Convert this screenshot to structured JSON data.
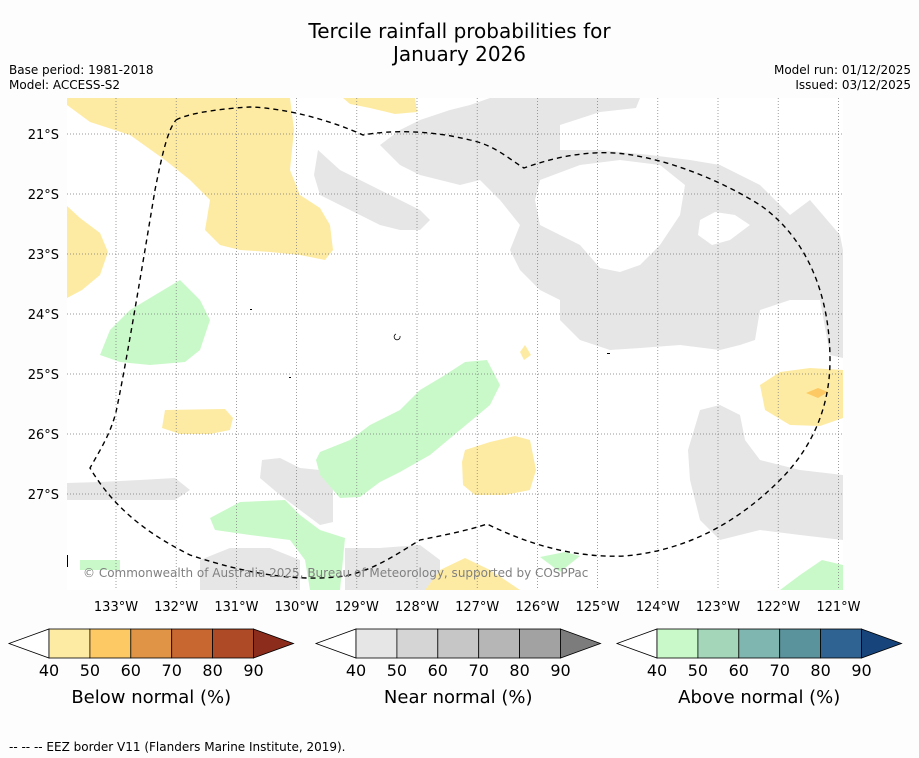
{
  "title_line1": "Tercile rainfall probabilities for",
  "title_line2": "January 2026",
  "base_period": "Base period: 1981-2018",
  "model": "Model: ACCESS-S2",
  "model_run": "Model run: 01/12/2025",
  "issued": "Issued: 03/12/2025",
  "copyright": "© Commonwealth of Australia 2025, Bureau of Meteorology, supported by COSPPac",
  "footer": "--  --  -- EEZ border V11 (Flanders Marine Institute, 2019).",
  "axes": {
    "lat_labels": [
      "21°S",
      "22°S",
      "23°S",
      "24°S",
      "25°S",
      "26°S",
      "27°S"
    ],
    "lon_labels": [
      "133°W",
      "132°W",
      "131°W",
      "130°W",
      "129°W",
      "128°W",
      "127°W",
      "126°W",
      "125°W",
      "124°W",
      "123°W",
      "122°W",
      "121°W"
    ]
  },
  "colorbars": [
    {
      "label": "Below normal (%)",
      "ticks": [
        "40",
        "50",
        "60",
        "70",
        "80",
        "90"
      ],
      "colors": [
        "#feeba3",
        "#fcc964",
        "#e09446",
        "#c96731",
        "#ae4a26",
        "#8c2c1d"
      ]
    },
    {
      "label": "Near normal (%)",
      "ticks": [
        "40",
        "50",
        "60",
        "70",
        "80",
        "90"
      ],
      "colors": [
        "#e6e6e6",
        "#d5d5d5",
        "#c6c6c6",
        "#b6b6b6",
        "#a2a2a2",
        "#7c7c7c"
      ]
    },
    {
      "label": "Above normal (%)",
      "ticks": [
        "40",
        "50",
        "60",
        "70",
        "80",
        "90"
      ],
      "colors": [
        "#caf9c9",
        "#a4d6b9",
        "#80b6b0",
        "#5b939d",
        "#2f6392",
        "#17457b"
      ]
    }
  ],
  "colors": {
    "below40": "#feeba3",
    "below50": "#fcc964",
    "near40": "#e6e6e6",
    "above40": "#caf9c9"
  }
}
